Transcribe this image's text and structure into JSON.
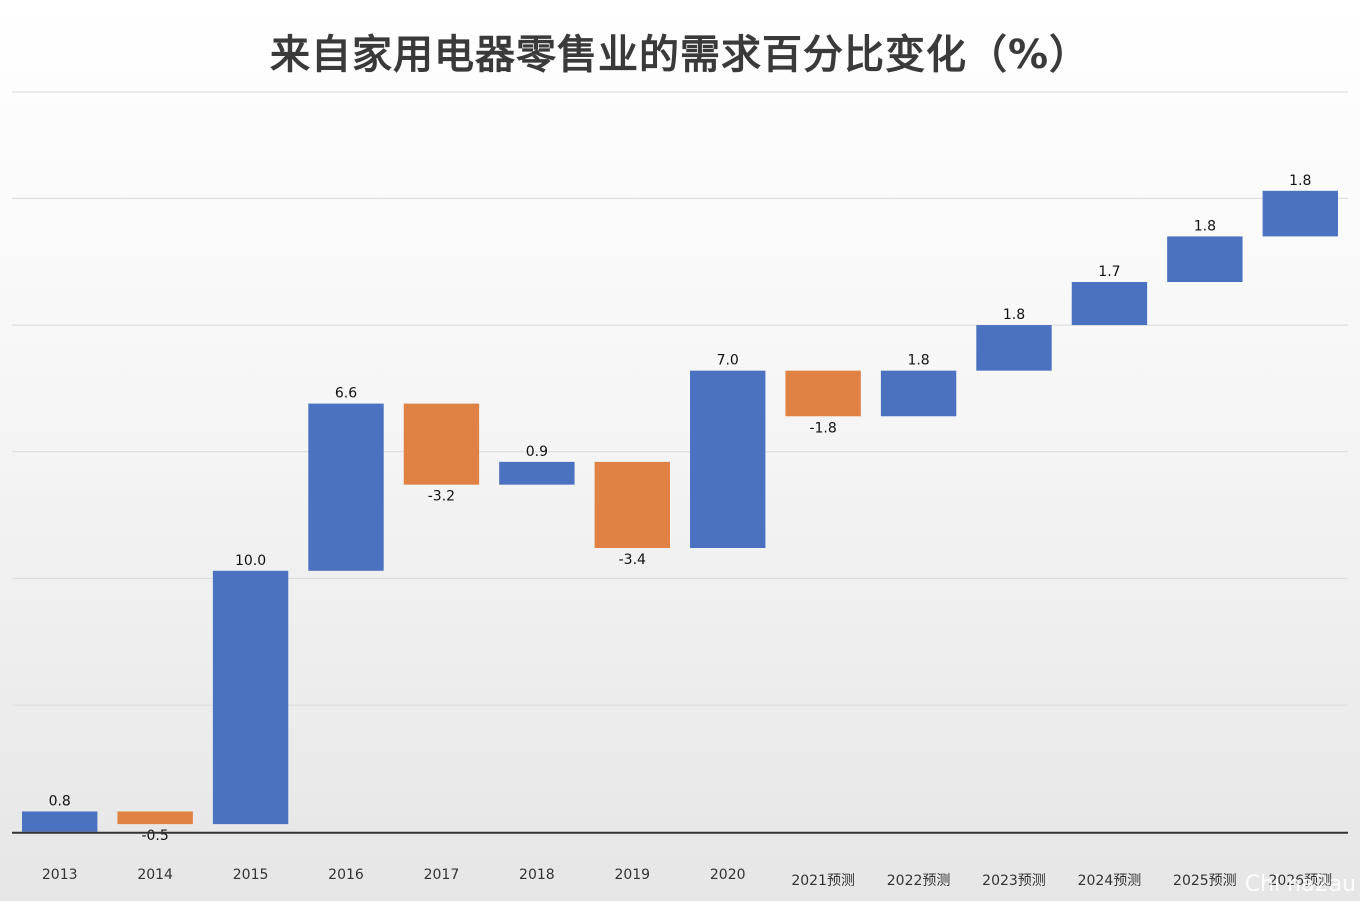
{
  "title": "来自家用电器零售业的需求百分比变化（%）",
  "watermark": "Chi na2au",
  "colors": {
    "increase": "#4a72c0",
    "decrease": "#e08243",
    "grid": "#d9d9d9",
    "axis": "#333333"
  },
  "chart_data": {
    "type": "waterfall",
    "title": "来自家用电器零售业的需求百分比变化（%）",
    "xlabel": "",
    "ylabel": "",
    "ylim": [
      -0.8,
      29.2
    ],
    "grid": true,
    "categories": [
      "2013",
      "2014",
      "2015",
      "2016",
      "2017",
      "2018",
      "2019",
      "2020",
      "2021预测",
      "2022预测",
      "2023预测",
      "2024预测",
      "2025预测",
      "2026预测"
    ],
    "values": [
      0.8,
      -0.5,
      10.0,
      6.6,
      -3.2,
      0.9,
      -3.4,
      7.0,
      -1.8,
      1.8,
      1.8,
      1.7,
      1.8,
      1.8
    ],
    "value_labels": [
      "0.8",
      "-0.5",
      "10.0",
      "6.6",
      "-3.2",
      "0.9",
      "-3.4",
      "7.0",
      "-1.8",
      "1.8",
      "1.8",
      "1.7",
      "1.8",
      "1.8"
    ]
  }
}
